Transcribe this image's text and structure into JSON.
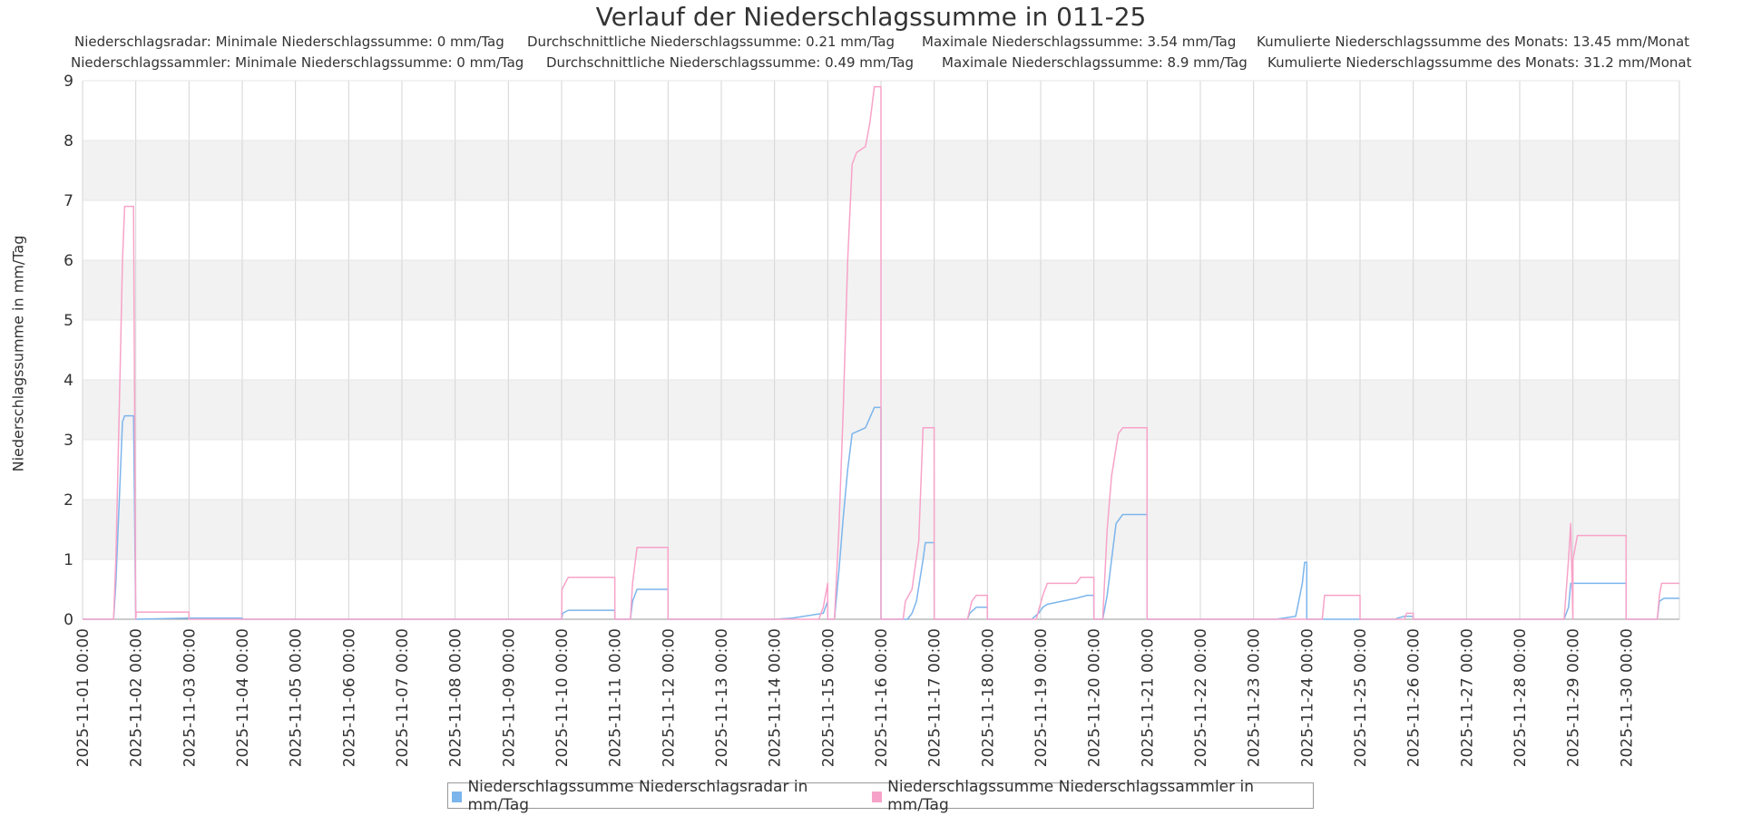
{
  "chart_data": {
    "type": "line",
    "title": "Verlauf der Niederschlagssumme in 011-25",
    "subtitle_rows": [
      [
        "Niederschlagsradar: Minimale Niederschlagssumme: 0 mm/Tag",
        "Durchschnittliche Niederschlagssumme: 0.21 mm/Tag",
        "Maximale Niederschlagssumme: 3.54 mm/Tag",
        "Kumulierte Niederschlagssumme des Monats: 13.45 mm/Monat"
      ],
      [
        "Niederschlagssammler: Minimale Niederschlagssumme: 0 mm/Tag",
        "Durchschnittliche Niederschlagssumme: 0.49 mm/Tag",
        "Maximale Niederschlagssumme: 8.9 mm/Tag",
        "Kumulierte Niederschlagssumme des Monats: 31.2 mm/Monat"
      ]
    ],
    "ylabel": "Niederschlagssumme in mm/Tag",
    "xlabel": "",
    "ylim": [
      0,
      9
    ],
    "yticks": [
      "0",
      "1",
      "2",
      "3",
      "4",
      "5",
      "6",
      "7",
      "8",
      "9"
    ],
    "xticks": [
      "2025-11-01 00:00",
      "2025-11-02 00:00",
      "2025-11-03 00:00",
      "2025-11-04 00:00",
      "2025-11-05 00:00",
      "2025-11-06 00:00",
      "2025-11-07 00:00",
      "2025-11-08 00:00",
      "2025-11-09 00:00",
      "2025-11-10 00:00",
      "2025-11-11 00:00",
      "2025-11-12 00:00",
      "2025-11-13 00:00",
      "2025-11-14 00:00",
      "2025-11-15 00:00",
      "2025-11-16 00:00",
      "2025-11-17 00:00",
      "2025-11-18 00:00",
      "2025-11-19 00:00",
      "2025-11-20 00:00",
      "2025-11-21 00:00",
      "2025-11-22 00:00",
      "2025-11-23 00:00",
      "2025-11-24 00:00",
      "2025-11-25 00:00",
      "2025-11-26 00:00",
      "2025-11-27 00:00",
      "2025-11-28 00:00",
      "2025-11-29 00:00",
      "2025-11-30 00:00"
    ],
    "xlim": [
      "2025-11-01 00:00",
      "2025-12-01 00:00"
    ],
    "grid": true,
    "legend_position": "bottom",
    "series": [
      {
        "name": "Niederschlagssumme Niederschlagsradar in mm/Tag",
        "color": "#7cb5ec",
        "points": [
          [
            "2025-11-01 00:00",
            0
          ],
          [
            "2025-11-01 14:00",
            0
          ],
          [
            "2025-11-01 15:00",
            0.6
          ],
          [
            "2025-11-01 16:00",
            1.5
          ],
          [
            "2025-11-01 17:00",
            2.4
          ],
          [
            "2025-11-01 18:00",
            3.3
          ],
          [
            "2025-11-01 19:00",
            3.4
          ],
          [
            "2025-11-01 23:00",
            3.4
          ],
          [
            "2025-11-01 23:59",
            0
          ],
          [
            "2025-11-02 00:00",
            0
          ],
          [
            "2025-11-03 00:00",
            0.02
          ],
          [
            "2025-11-03 23:59",
            0.02
          ],
          [
            "2025-11-04 00:00",
            0
          ],
          [
            "2025-11-10 00:00",
            0
          ],
          [
            "2025-11-10 00:30",
            0.1
          ],
          [
            "2025-11-10 03:00",
            0.15
          ],
          [
            "2025-11-10 23:59",
            0.15
          ],
          [
            "2025-11-11 00:00",
            0
          ],
          [
            "2025-11-11 07:00",
            0
          ],
          [
            "2025-11-11 08:00",
            0.3
          ],
          [
            "2025-11-11 10:00",
            0.5
          ],
          [
            "2025-11-11 23:59",
            0.5
          ],
          [
            "2025-11-12 00:00",
            0
          ],
          [
            "2025-11-14 00:00",
            0
          ],
          [
            "2025-11-14 08:00",
            0.02
          ],
          [
            "2025-11-14 22:00",
            0.1
          ],
          [
            "2025-11-14 23:59",
            0.3
          ],
          [
            "2025-11-15 00:00",
            0
          ],
          [
            "2025-11-15 03:00",
            0
          ],
          [
            "2025-11-15 05:00",
            0.8
          ],
          [
            "2025-11-15 07:00",
            1.7
          ],
          [
            "2025-11-15 09:00",
            2.5
          ],
          [
            "2025-11-15 11:00",
            3.1
          ],
          [
            "2025-11-15 17:00",
            3.2
          ],
          [
            "2025-11-15 21:00",
            3.54
          ],
          [
            "2025-11-15 23:59",
            3.54
          ],
          [
            "2025-11-16 00:00",
            0
          ],
          [
            "2025-11-16 12:00",
            0
          ],
          [
            "2025-11-16 14:00",
            0.1
          ],
          [
            "2025-11-16 16:00",
            0.3
          ],
          [
            "2025-11-16 19:00",
            1.0
          ],
          [
            "2025-11-16 20:00",
            1.28
          ],
          [
            "2025-11-16 23:59",
            1.28
          ],
          [
            "2025-11-17 00:00",
            0
          ],
          [
            "2025-11-17 15:00",
            0
          ],
          [
            "2025-11-17 16:00",
            0.1
          ],
          [
            "2025-11-17 19:00",
            0.2
          ],
          [
            "2025-11-17 23:59",
            0.2
          ],
          [
            "2025-11-18 00:00",
            0
          ],
          [
            "2025-11-18 20:00",
            0
          ],
          [
            "2025-11-18 23:00",
            0.1
          ],
          [
            "2025-11-19 01:00",
            0.2
          ],
          [
            "2025-11-19 03:00",
            0.25
          ],
          [
            "2025-11-19 16:00",
            0.35
          ],
          [
            "2025-11-19 21:00",
            0.4
          ],
          [
            "2025-11-19 23:59",
            0.4
          ],
          [
            "2025-11-20 00:00",
            0
          ],
          [
            "2025-11-20 04:00",
            0
          ],
          [
            "2025-11-20 06:00",
            0.4
          ],
          [
            "2025-11-20 08:00",
            1.0
          ],
          [
            "2025-11-20 10:00",
            1.6
          ],
          [
            "2025-11-20 13:00",
            1.75
          ],
          [
            "2025-11-20 23:59",
            1.75
          ],
          [
            "2025-11-21 00:00",
            0
          ],
          [
            "2025-11-23 10:00",
            0
          ],
          [
            "2025-11-23 19:00",
            0.05
          ],
          [
            "2025-11-23 22:00",
            0.6
          ],
          [
            "2025-11-23 23:00",
            0.95
          ],
          [
            "2025-11-23 23:59",
            0.95
          ],
          [
            "2025-11-24 00:00",
            0
          ],
          [
            "2025-11-25 16:00",
            0
          ],
          [
            "2025-11-25 17:00",
            0.02
          ],
          [
            "2025-11-25 20:00",
            0.05
          ],
          [
            "2025-11-25 23:59",
            0.05
          ],
          [
            "2025-11-26 00:00",
            0
          ],
          [
            "2025-11-28 20:00",
            0
          ],
          [
            "2025-11-28 22:00",
            0.2
          ],
          [
            "2025-11-28 23:00",
            0.6
          ],
          [
            "2025-11-29 00:00",
            0.6
          ],
          [
            "2025-11-29 23:59",
            0.6
          ],
          [
            "2025-11-30 00:00",
            0
          ],
          [
            "2025-11-30 14:00",
            0
          ],
          [
            "2025-11-30 15:00",
            0.3
          ],
          [
            "2025-11-30 17:00",
            0.35
          ],
          [
            "2025-11-30 23:59",
            0.35
          ]
        ]
      },
      {
        "name": "Niederschlagssumme Niederschlagssammler in mm/Tag",
        "color": "#f7a3c9",
        "points": [
          [
            "2025-11-01 00:00",
            0
          ],
          [
            "2025-11-01 14:00",
            0
          ],
          [
            "2025-11-01 15:00",
            1.0
          ],
          [
            "2025-11-01 16:00",
            2.6
          ],
          [
            "2025-11-01 17:00",
            4.3
          ],
          [
            "2025-11-01 18:00",
            6.0
          ],
          [
            "2025-11-01 19:00",
            6.9
          ],
          [
            "2025-11-01 23:00",
            6.9
          ],
          [
            "2025-11-01 23:59",
            0
          ],
          [
            "2025-11-02 00:00",
            0
          ],
          [
            "2025-11-02 00:10",
            0.12
          ],
          [
            "2025-11-02 23:59",
            0.12
          ],
          [
            "2025-11-03 00:00",
            0
          ],
          [
            "2025-11-10 00:00",
            0
          ],
          [
            "2025-11-10 00:10",
            0.5
          ],
          [
            "2025-11-10 03:00",
            0.7
          ],
          [
            "2025-11-10 23:59",
            0.7
          ],
          [
            "2025-11-11 00:00",
            0
          ],
          [
            "2025-11-11 07:00",
            0
          ],
          [
            "2025-11-11 08:00",
            0.6
          ],
          [
            "2025-11-11 10:00",
            1.2
          ],
          [
            "2025-11-11 23:59",
            1.2
          ],
          [
            "2025-11-12 00:00",
            0
          ],
          [
            "2025-11-14 20:00",
            0
          ],
          [
            "2025-11-14 22:00",
            0.2
          ],
          [
            "2025-11-14 23:59",
            0.6
          ],
          [
            "2025-11-15 00:00",
            0
          ],
          [
            "2025-11-15 03:00",
            0
          ],
          [
            "2025-11-15 05:00",
            1.5
          ],
          [
            "2025-11-15 07:00",
            3.5
          ],
          [
            "2025-11-15 09:00",
            6.0
          ],
          [
            "2025-11-15 11:00",
            7.6
          ],
          [
            "2025-11-15 13:00",
            7.8
          ],
          [
            "2025-11-15 17:00",
            7.9
          ],
          [
            "2025-11-15 19:00",
            8.3
          ],
          [
            "2025-11-15 21:00",
            8.9
          ],
          [
            "2025-11-15 23:59",
            8.9
          ],
          [
            "2025-11-16 00:00",
            0
          ],
          [
            "2025-11-16 10:00",
            0
          ],
          [
            "2025-11-16 11:00",
            0.3
          ],
          [
            "2025-11-16 14:00",
            0.5
          ],
          [
            "2025-11-16 17:00",
            1.3
          ],
          [
            "2025-11-16 19:00",
            3.2
          ],
          [
            "2025-11-16 23:59",
            3.2
          ],
          [
            "2025-11-17 00:00",
            0
          ],
          [
            "2025-11-17 15:00",
            0
          ],
          [
            "2025-11-17 17:00",
            0.3
          ],
          [
            "2025-11-17 19:00",
            0.4
          ],
          [
            "2025-11-17 23:59",
            0.4
          ],
          [
            "2025-11-18 00:00",
            0
          ],
          [
            "2025-11-18 22:00",
            0
          ],
          [
            "2025-11-19 01:00",
            0.4
          ],
          [
            "2025-11-19 03:00",
            0.6
          ],
          [
            "2025-11-19 16:00",
            0.6
          ],
          [
            "2025-11-19 18:00",
            0.7
          ],
          [
            "2025-11-19 23:59",
            0.7
          ],
          [
            "2025-11-20 00:00",
            0
          ],
          [
            "2025-11-20 04:00",
            0
          ],
          [
            "2025-11-20 06:00",
            1.5
          ],
          [
            "2025-11-20 08:00",
            2.4
          ],
          [
            "2025-11-20 11:00",
            3.1
          ],
          [
            "2025-11-20 13:00",
            3.2
          ],
          [
            "2025-11-20 23:59",
            3.2
          ],
          [
            "2025-11-21 00:00",
            0
          ],
          [
            "2025-11-24 07:00",
            0
          ],
          [
            "2025-11-24 08:00",
            0.4
          ],
          [
            "2025-11-24 23:59",
            0.4
          ],
          [
            "2025-11-25 00:00",
            0
          ],
          [
            "2025-11-25 20:00",
            0
          ],
          [
            "2025-11-25 21:00",
            0.1
          ],
          [
            "2025-11-25 23:59",
            0.1
          ],
          [
            "2025-11-26 00:00",
            0
          ],
          [
            "2025-11-28 20:00",
            0
          ],
          [
            "2025-11-28 22:00",
            1.0
          ],
          [
            "2025-11-28 23:00",
            1.6
          ],
          [
            "2025-11-28 23:59",
            0
          ],
          [
            "2025-11-29 00:00",
            1.0
          ],
          [
            "2025-11-29 02:00",
            1.4
          ],
          [
            "2025-11-29 23:59",
            1.4
          ],
          [
            "2025-11-30 00:00",
            0
          ],
          [
            "2025-11-30 14:00",
            0
          ],
          [
            "2025-11-30 15:00",
            0.4
          ],
          [
            "2025-11-30 16:00",
            0.6
          ],
          [
            "2025-11-30 23:59",
            0.6
          ]
        ]
      }
    ]
  }
}
